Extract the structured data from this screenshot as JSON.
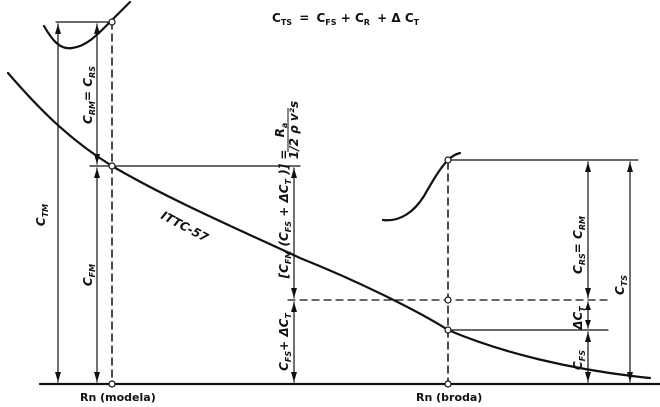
{
  "title_formula": "Cᴛₛ = Cғₛ + Cʀ + ΔCᴛ",
  "title": {
    "c_ts": "C",
    "c_ts_sub": "TS",
    "eq": "=",
    "c_fs": "C",
    "c_fs_sub": "FS",
    "plus1": "+",
    "c_r": "C",
    "c_r_sub": "R",
    "plus2": "+ Δ C",
    "c_t_sub": "T"
  },
  "curve_label": "ITTC-57",
  "labels": {
    "c_tm": "C",
    "c_tm_sub": "TM",
    "c_fm": "C",
    "c_fm_sub": "FM",
    "c_rm_eq_c_rs": "C",
    "c_rm_sub": "RM",
    "c_rm_eq": "= C",
    "c_rs_sub": "RS",
    "bracket_formula": "[C",
    "bracket_formula_sub1": "FM",
    "bracket_formula_mid": "(C",
    "bracket_formula_sub2": "FS",
    "bracket_formula_end": "+ ΔC",
    "bracket_formula_sub3": "T",
    "bracket_formula_close": ")] =",
    "ra_num": "R",
    "ra_num_sub": "a",
    "ra_den": "1/2 ρ v²s",
    "c_fs_dct": "C",
    "c_fs_dct_sub": "FS",
    "c_fs_dct_plus": "+ ΔC",
    "c_fs_dct_sub2": "T",
    "c_rs_eq_c_rm": "C",
    "c_rs_sub2": "RS",
    "c_rs_eq": "= C",
    "c_rm_sub2": "RM",
    "c_ts": "C",
    "c_ts_sub": "TS",
    "c_fs2": "C",
    "c_fs2_sub": "FS",
    "dct": "ΔC",
    "dct_sub": "T"
  },
  "x_axis": {
    "rn_model": "Rn (modela)",
    "rn_ship": "Rn (broda)"
  }
}
